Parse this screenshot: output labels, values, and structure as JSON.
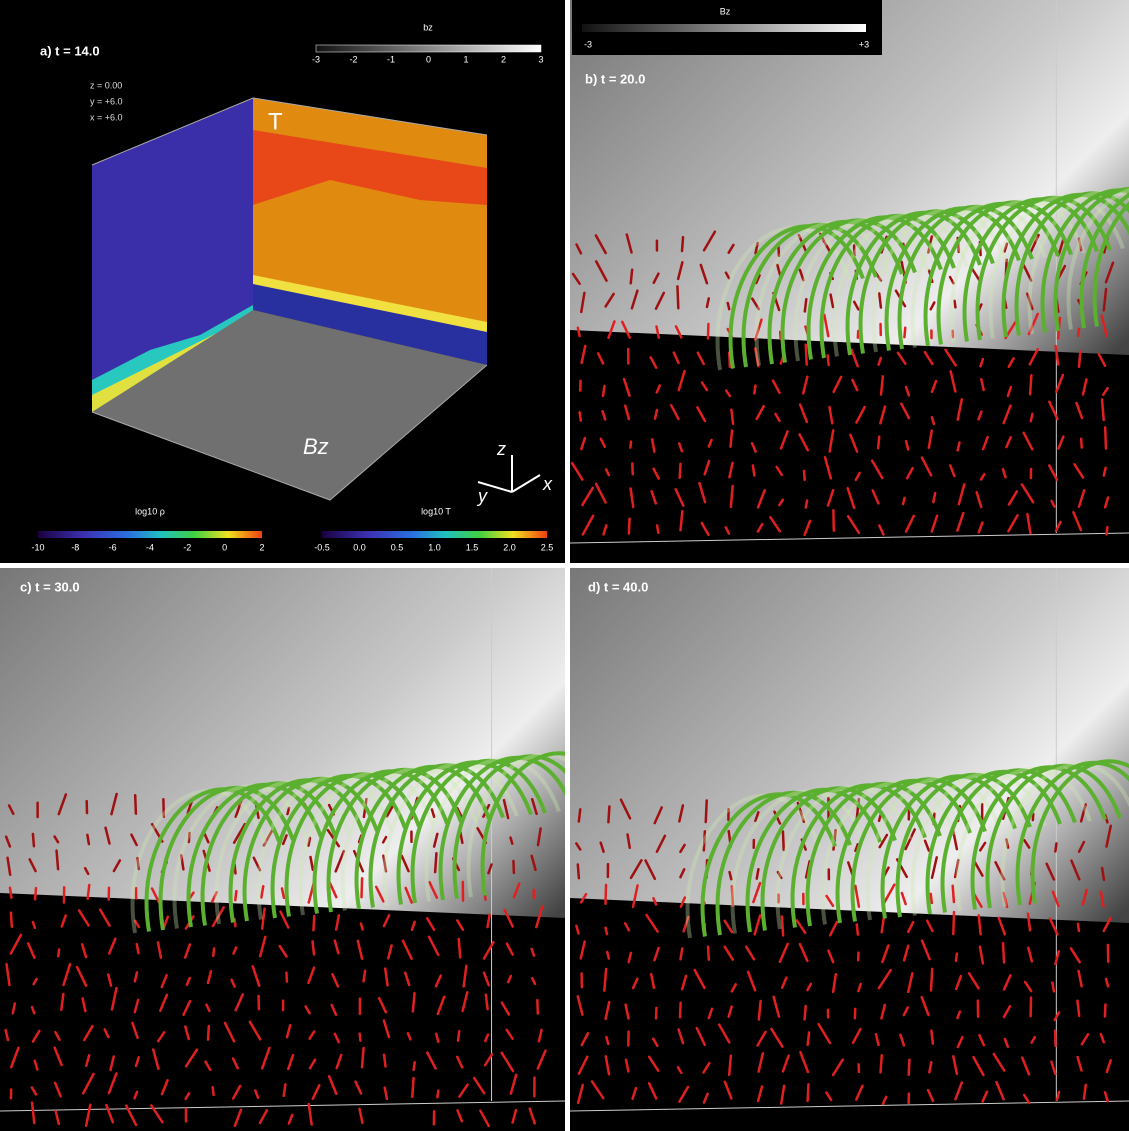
{
  "panels": [
    {
      "label": "a) t = 14.0",
      "coords": [
        "z = 0.00",
        "y = +6.0",
        "x = +6.0"
      ],
      "face_labels": [
        "T",
        "Bz"
      ],
      "axes": [
        "z",
        "y",
        "x"
      ],
      "colorbars": [
        {
          "title": "bz",
          "ticks": [
            "-3",
            "-2",
            "-1",
            "0",
            "1",
            "2",
            "3"
          ]
        },
        {
          "title": "log10 ρ",
          "ticks": [
            "-10",
            "-8",
            "-6",
            "-4",
            "-2",
            "0",
            "2"
          ]
        },
        {
          "title": "log10 T",
          "ticks": [
            "-0.5",
            "0.0",
            "0.5",
            "1.0",
            "1.5",
            "2.0",
            "2.5"
          ]
        }
      ]
    },
    {
      "label": "b) t = 20.0",
      "colorbar": {
        "title": "Bz",
        "ticks": [
          "-3",
          "+3"
        ]
      }
    },
    {
      "label": "c) t = 30.0"
    },
    {
      "label": "d) t = 40.0"
    }
  ]
}
